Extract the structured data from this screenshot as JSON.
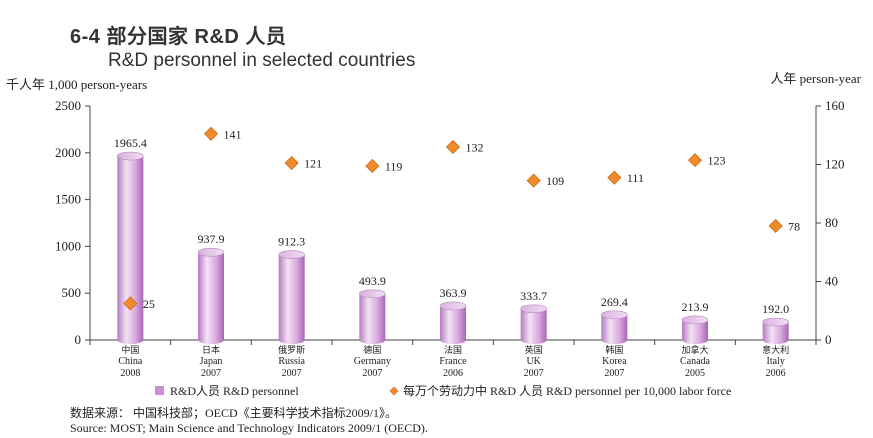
{
  "header": {
    "title_zh": "6-4 部分国家 R&D 人员",
    "title_en": "R&D personnel in selected countries"
  },
  "units": {
    "left": "千人年 1,000 person-years",
    "right": "人年 person-year"
  },
  "footer": {
    "source_zh": "数据来源： 中国科技部；OECD《主要科学技术指标2009/1》。",
    "source_en": "Source: MOST; Main Science and Technology Indicators 2009/1 (OECD)."
  },
  "colors": {
    "bar_light": "#f3e3f5",
    "bar_mid": "#c98fd1",
    "bar_dark": "#a766b3",
    "diamond": "#f08a2a",
    "diamond_edge": "#c96d18",
    "axis": "#444444"
  },
  "chart_data": {
    "type": "bar",
    "categories_zh": [
      "中国",
      "日本",
      "俄罗斯",
      "德国",
      "法国",
      "英国",
      "韩国",
      "加拿大",
      "意大利"
    ],
    "categories": [
      "China",
      "Japan",
      "Russia",
      "Germany",
      "France",
      "UK",
      "Korea",
      "Canada",
      "Italy"
    ],
    "years": [
      "2008",
      "2007",
      "2007",
      "2007",
      "2006",
      "2007",
      "2007",
      "2005",
      "2006"
    ],
    "series": [
      {
        "name": "R&D人员 R&D personnel",
        "axis": "left",
        "mark": "bar",
        "values": [
          1965.4,
          937.9,
          912.3,
          493.9,
          363.9,
          333.7,
          269.4,
          213.9,
          192.0
        ],
        "labels": [
          "1965.4",
          "937.9",
          "912.3",
          "493.9",
          "363.9",
          "333.7",
          "269.4",
          "213.9",
          "192.0"
        ]
      },
      {
        "name": "每万个劳动力中 R&D 人员 R&D personnel per 10,000 labor force",
        "axis": "right",
        "mark": "diamond",
        "values": [
          25,
          141,
          121,
          119,
          132,
          109,
          111,
          123,
          78
        ],
        "labels": [
          "25",
          "141",
          "121",
          "119",
          "132",
          "109",
          "111",
          "123",
          "78"
        ]
      }
    ],
    "left_axis": {
      "ylim": [
        0,
        2500
      ],
      "ticks": [
        "0",
        "500",
        "1000",
        "1500",
        "2000",
        "2500"
      ]
    },
    "right_axis": {
      "ylim": [
        0,
        160
      ],
      "ticks": [
        "0",
        "40",
        "80",
        "120",
        "160"
      ]
    },
    "legend": "bottom",
    "grid": false
  }
}
